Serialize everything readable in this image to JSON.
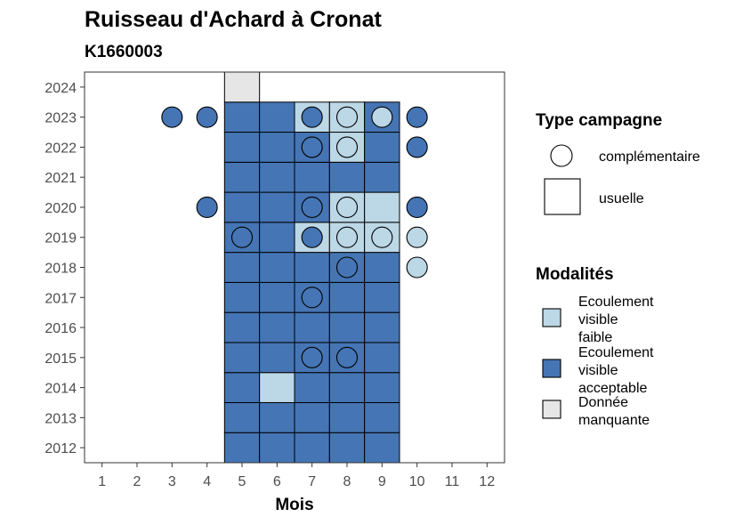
{
  "chart_data": {
    "type": "heatmap",
    "title": "Ruisseau d'Achard à Cronat",
    "subtitle": "K1660003",
    "xlabel": "Mois",
    "ylabel": "",
    "x_ticks": [
      "1",
      "2",
      "3",
      "4",
      "5",
      "6",
      "7",
      "8",
      "9",
      "10",
      "11",
      "12"
    ],
    "y_ticks": [
      "2012",
      "2013",
      "2014",
      "2015",
      "2016",
      "2017",
      "2018",
      "2019",
      "2020",
      "2021",
      "2022",
      "2023",
      "2024"
    ],
    "xlim": [
      0.5,
      12.5
    ],
    "ylim": [
      2011.5,
      2024.5
    ],
    "grid": false,
    "colors": {
      "Ecoulement visible faible": "#bcd7e6",
      "Ecoulement visible acceptable": "#4575b4",
      "Donnée manquante": "#e6e6e6"
    },
    "usuelle": [
      {
        "year": 2012,
        "month": 5,
        "m": "Ecoulement visible acceptable"
      },
      {
        "year": 2012,
        "month": 6,
        "m": "Ecoulement visible acceptable"
      },
      {
        "year": 2012,
        "month": 7,
        "m": "Ecoulement visible acceptable"
      },
      {
        "year": 2012,
        "month": 8,
        "m": "Ecoulement visible acceptable"
      },
      {
        "year": 2012,
        "month": 9,
        "m": "Ecoulement visible acceptable"
      },
      {
        "year": 2013,
        "month": 5,
        "m": "Ecoulement visible acceptable"
      },
      {
        "year": 2013,
        "month": 6,
        "m": "Ecoulement visible acceptable"
      },
      {
        "year": 2013,
        "month": 7,
        "m": "Ecoulement visible acceptable"
      },
      {
        "year": 2013,
        "month": 8,
        "m": "Ecoulement visible acceptable"
      },
      {
        "year": 2013,
        "month": 9,
        "m": "Ecoulement visible acceptable"
      },
      {
        "year": 2014,
        "month": 5,
        "m": "Ecoulement visible acceptable"
      },
      {
        "year": 2014,
        "month": 6,
        "m": "Ecoulement visible faible"
      },
      {
        "year": 2014,
        "month": 7,
        "m": "Ecoulement visible acceptable"
      },
      {
        "year": 2014,
        "month": 8,
        "m": "Ecoulement visible acceptable"
      },
      {
        "year": 2014,
        "month": 9,
        "m": "Ecoulement visible acceptable"
      },
      {
        "year": 2015,
        "month": 5,
        "m": "Ecoulement visible acceptable"
      },
      {
        "year": 2015,
        "month": 6,
        "m": "Ecoulement visible acceptable"
      },
      {
        "year": 2015,
        "month": 7,
        "m": "Ecoulement visible acceptable"
      },
      {
        "year": 2015,
        "month": 8,
        "m": "Ecoulement visible acceptable"
      },
      {
        "year": 2015,
        "month": 9,
        "m": "Ecoulement visible acceptable"
      },
      {
        "year": 2016,
        "month": 5,
        "m": "Ecoulement visible acceptable"
      },
      {
        "year": 2016,
        "month": 6,
        "m": "Ecoulement visible acceptable"
      },
      {
        "year": 2016,
        "month": 7,
        "m": "Ecoulement visible acceptable"
      },
      {
        "year": 2016,
        "month": 8,
        "m": "Ecoulement visible acceptable"
      },
      {
        "year": 2016,
        "month": 9,
        "m": "Ecoulement visible acceptable"
      },
      {
        "year": 2017,
        "month": 5,
        "m": "Ecoulement visible acceptable"
      },
      {
        "year": 2017,
        "month": 6,
        "m": "Ecoulement visible acceptable"
      },
      {
        "year": 2017,
        "month": 7,
        "m": "Ecoulement visible acceptable"
      },
      {
        "year": 2017,
        "month": 8,
        "m": "Ecoulement visible acceptable"
      },
      {
        "year": 2017,
        "month": 9,
        "m": "Ecoulement visible acceptable"
      },
      {
        "year": 2018,
        "month": 5,
        "m": "Ecoulement visible acceptable"
      },
      {
        "year": 2018,
        "month": 6,
        "m": "Ecoulement visible acceptable"
      },
      {
        "year": 2018,
        "month": 7,
        "m": "Ecoulement visible acceptable"
      },
      {
        "year": 2018,
        "month": 8,
        "m": "Ecoulement visible acceptable"
      },
      {
        "year": 2018,
        "month": 9,
        "m": "Ecoulement visible acceptable"
      },
      {
        "year": 2019,
        "month": 5,
        "m": "Ecoulement visible acceptable"
      },
      {
        "year": 2019,
        "month": 6,
        "m": "Ecoulement visible acceptable"
      },
      {
        "year": 2019,
        "month": 7,
        "m": "Ecoulement visible faible"
      },
      {
        "year": 2019,
        "month": 8,
        "m": "Ecoulement visible faible"
      },
      {
        "year": 2019,
        "month": 9,
        "m": "Ecoulement visible faible"
      },
      {
        "year": 2020,
        "month": 5,
        "m": "Ecoulement visible acceptable"
      },
      {
        "year": 2020,
        "month": 6,
        "m": "Ecoulement visible acceptable"
      },
      {
        "year": 2020,
        "month": 7,
        "m": "Ecoulement visible acceptable"
      },
      {
        "year": 2020,
        "month": 8,
        "m": "Ecoulement visible faible"
      },
      {
        "year": 2020,
        "month": 9,
        "m": "Ecoulement visible faible"
      },
      {
        "year": 2021,
        "month": 5,
        "m": "Ecoulement visible acceptable"
      },
      {
        "year": 2021,
        "month": 6,
        "m": "Ecoulement visible acceptable"
      },
      {
        "year": 2021,
        "month": 7,
        "m": "Ecoulement visible acceptable"
      },
      {
        "year": 2021,
        "month": 8,
        "m": "Ecoulement visible acceptable"
      },
      {
        "year": 2021,
        "month": 9,
        "m": "Ecoulement visible acceptable"
      },
      {
        "year": 2022,
        "month": 5,
        "m": "Ecoulement visible acceptable"
      },
      {
        "year": 2022,
        "month": 6,
        "m": "Ecoulement visible acceptable"
      },
      {
        "year": 2022,
        "month": 7,
        "m": "Ecoulement visible acceptable"
      },
      {
        "year": 2022,
        "month": 8,
        "m": "Ecoulement visible faible"
      },
      {
        "year": 2022,
        "month": 9,
        "m": "Ecoulement visible acceptable"
      },
      {
        "year": 2023,
        "month": 5,
        "m": "Ecoulement visible acceptable"
      },
      {
        "year": 2023,
        "month": 6,
        "m": "Ecoulement visible acceptable"
      },
      {
        "year": 2023,
        "month": 7,
        "m": "Ecoulement visible faible"
      },
      {
        "year": 2023,
        "month": 8,
        "m": "Ecoulement visible faible"
      },
      {
        "year": 2023,
        "month": 9,
        "m": "Ecoulement visible acceptable"
      },
      {
        "year": 2024,
        "month": 5,
        "m": "Donnée manquante"
      }
    ],
    "complementaire": [
      {
        "year": 2015,
        "month": 7,
        "m": "Ecoulement visible acceptable"
      },
      {
        "year": 2015,
        "month": 8,
        "m": "Ecoulement visible acceptable"
      },
      {
        "year": 2017,
        "month": 7,
        "m": "Ecoulement visible acceptable"
      },
      {
        "year": 2018,
        "month": 8,
        "m": "Ecoulement visible acceptable"
      },
      {
        "year": 2018,
        "month": 10,
        "m": "Ecoulement visible faible"
      },
      {
        "year": 2019,
        "month": 5,
        "m": "Ecoulement visible acceptable"
      },
      {
        "year": 2019,
        "month": 7,
        "m": "Ecoulement visible acceptable"
      },
      {
        "year": 2019,
        "month": 8,
        "m": "Ecoulement visible faible"
      },
      {
        "year": 2019,
        "month": 9,
        "m": "Ecoulement visible faible"
      },
      {
        "year": 2019,
        "month": 10,
        "m": "Ecoulement visible faible"
      },
      {
        "year": 2020,
        "month": 4,
        "m": "Ecoulement visible acceptable"
      },
      {
        "year": 2020,
        "month": 7,
        "m": "Ecoulement visible acceptable"
      },
      {
        "year": 2020,
        "month": 8,
        "m": "Ecoulement visible faible"
      },
      {
        "year": 2020,
        "month": 10,
        "m": "Ecoulement visible acceptable"
      },
      {
        "year": 2022,
        "month": 7,
        "m": "Ecoulement visible acceptable"
      },
      {
        "year": 2022,
        "month": 8,
        "m": "Ecoulement visible faible"
      },
      {
        "year": 2022,
        "month": 10,
        "m": "Ecoulement visible acceptable"
      },
      {
        "year": 2023,
        "month": 3,
        "m": "Ecoulement visible acceptable"
      },
      {
        "year": 2023,
        "month": 4,
        "m": "Ecoulement visible acceptable"
      },
      {
        "year": 2023,
        "month": 7,
        "m": "Ecoulement visible acceptable"
      },
      {
        "year": 2023,
        "month": 8,
        "m": "Ecoulement visible faible"
      },
      {
        "year": 2023,
        "month": 9,
        "m": "Ecoulement visible faible"
      },
      {
        "year": 2023,
        "month": 10,
        "m": "Ecoulement visible acceptable"
      }
    ],
    "legends": {
      "type_title": "Type campagne",
      "type_items": [
        "complémentaire",
        "usuelle"
      ],
      "mod_title": "Modalités",
      "mod_items": [
        {
          "label_lines": [
            "Ecoulement",
            "visible",
            "faible"
          ],
          "key": "Ecoulement visible faible"
        },
        {
          "label_lines": [
            "Ecoulement",
            "visible",
            "acceptable"
          ],
          "key": "Ecoulement visible acceptable"
        },
        {
          "label_lines": [
            "Donnée",
            "manquante"
          ],
          "key": "Donnée manquante"
        }
      ]
    }
  }
}
